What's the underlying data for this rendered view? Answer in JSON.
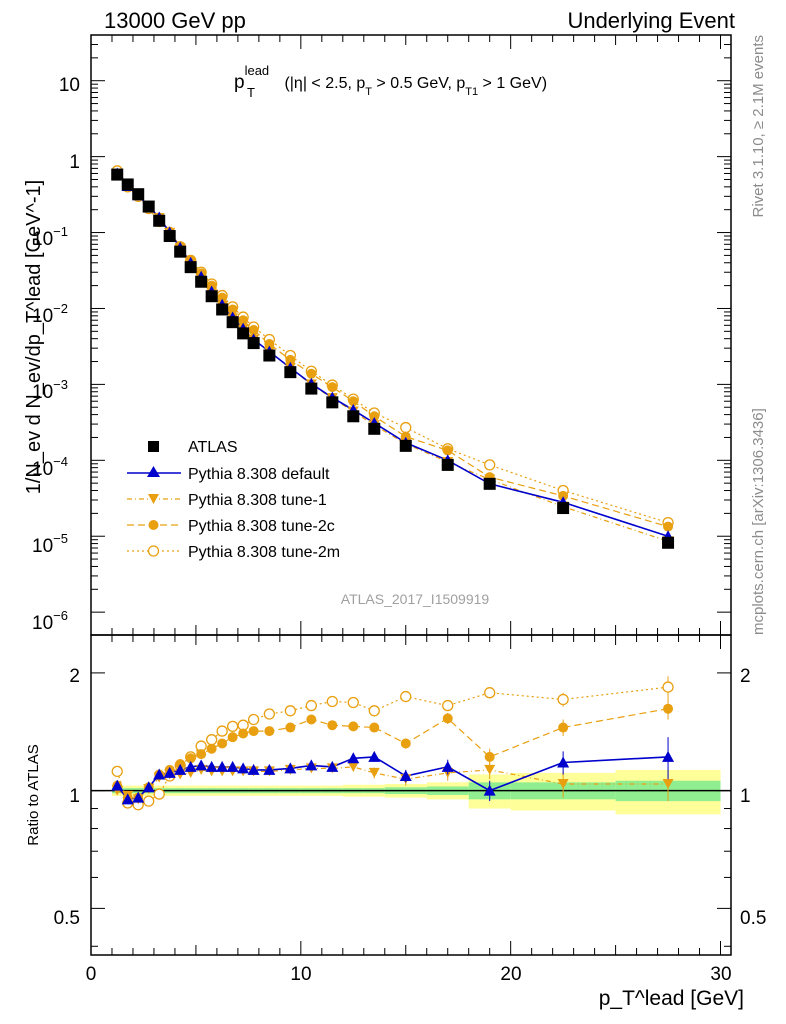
{
  "header": {
    "left": "13000 GeV pp",
    "right": "Underlying Event"
  },
  "side_labels": {
    "rivet": "Rivet 3.1.10, ≥ 2.1M events",
    "mcplots": "mcplots.cern.ch [arXiv:1306.3436]"
  },
  "analysis_id": "ATLAS_2017_I1509919",
  "colors": {
    "atlas": "#000000",
    "default": "#0000cc",
    "tunes": "#e8a010",
    "band_inner": "#90ee90",
    "band_outer": "#ffff99"
  },
  "chart_data": [
    {
      "type": "scatter",
      "panel": "main",
      "title_parts": {
        "p": "p",
        "sup": "lead",
        "sub": "T",
        "cut1": " (|η| < 2.5, p",
        "cut1_sub": "T",
        "cut2": " > 0.5 GeV, p",
        "cut2_sub": "T1",
        "cut3": " > 1 GeV)"
      },
      "ylabel_text": "1/N_ev d N_ev/dp_T^lead [GeV^-1]",
      "y_tick_labels": {
        "t1e1": "10",
        "t1e0": "1",
        "t1em1_base": "10",
        "t1em1_exp": "−1",
        "t1em2_base": "10",
        "t1em2_exp": "−2",
        "t1em3_base": "10",
        "t1em3_exp": "−3",
        "t1em4_base": "10",
        "t1em4_exp": "−4",
        "t1em5_base": "10",
        "t1em5_exp": "−5",
        "t1em6_base": "10",
        "t1em6_exp": "−6"
      },
      "yscale": "log",
      "xlim": [
        0,
        30.5
      ],
      "ylim": [
        5e-07,
        40
      ],
      "legend_position": "middle-left",
      "x": [
        1.25,
        1.75,
        2.25,
        2.75,
        3.25,
        3.75,
        4.25,
        4.75,
        5.25,
        5.75,
        6.25,
        6.75,
        7.25,
        7.75,
        8.5,
        9.5,
        10.5,
        11.5,
        12.5,
        13.5,
        15,
        17,
        19,
        22.5,
        27.5
      ],
      "series": [
        {
          "name": "ATLAS",
          "style": "atlas",
          "values": [
            0.58,
            0.43,
            0.32,
            0.22,
            0.143,
            0.09,
            0.056,
            0.035,
            0.0225,
            0.0145,
            0.0097,
            0.0066,
            0.0047,
            0.0035,
            0.0024,
            0.00145,
            0.00088,
            0.00058,
            0.00038,
            0.00026,
            0.000155,
            8.7e-05,
            4.9e-05,
            2.35e-05,
            8.2e-06
          ]
        },
        {
          "name": "Pythia 8.308 default",
          "style": "default",
          "values": [
            0.6,
            0.41,
            0.31,
            0.22,
            0.158,
            0.1,
            0.063,
            0.04,
            0.0262,
            0.0167,
            0.0112,
            0.0076,
            0.0054,
            0.0039,
            0.0027,
            0.00165,
            0.00102,
            0.00067,
            0.00046,
            0.00031,
            0.00017,
            0.0001,
            4.9e-05,
            2.8e-05,
            1e-05
          ]
        },
        {
          "name": "Pythia 8.308 tune-1",
          "style": "tune1",
          "values": [
            0.58,
            0.42,
            0.31,
            0.22,
            0.155,
            0.099,
            0.062,
            0.039,
            0.0255,
            0.0162,
            0.0108,
            0.0074,
            0.0053,
            0.0039,
            0.0027,
            0.00165,
            0.001,
            0.00066,
            0.00044,
            0.00029,
            0.000165,
            9.5e-05,
            5.6e-05,
            2.45e-05,
            8.6e-06
          ]
        },
        {
          "name": "Pythia 8.308 tune-2c",
          "style": "tune2c",
          "values": [
            0.6,
            0.41,
            0.31,
            0.225,
            0.158,
            0.103,
            0.066,
            0.043,
            0.029,
            0.02,
            0.0139,
            0.0097,
            0.007,
            0.0052,
            0.0034,
            0.0021,
            0.00138,
            0.00092,
            0.0006,
            0.00038,
            0.000205,
            0.000135,
            6e-05,
            3.4e-05,
            1.34e-05
          ]
        },
        {
          "name": "Pythia 8.308 tune-2m",
          "style": "tune2m",
          "values": [
            0.65,
            0.4,
            0.3,
            0.207,
            0.14,
            0.097,
            0.065,
            0.043,
            0.03,
            0.021,
            0.0148,
            0.0105,
            0.0077,
            0.0057,
            0.0039,
            0.0024,
            0.00149,
            0.00098,
            0.00064,
            0.00042,
            0.00027,
            0.000142,
            8.7e-05,
            4e-05,
            1.51e-05
          ]
        }
      ]
    },
    {
      "type": "scatter",
      "panel": "ratio",
      "xlabel_text": "p_T^lead [GeV]",
      "ylabel": "Ratio to ATLAS",
      "x_tick_labels": [
        "0",
        "10",
        "20",
        "30"
      ],
      "y_tick_labels": [
        "0.5",
        "1",
        "2"
      ],
      "yscale": "log",
      "xlim": [
        0,
        30.5
      ],
      "ylim": [
        0.38,
        2.5
      ],
      "x": [
        1.25,
        1.75,
        2.25,
        2.75,
        3.25,
        3.75,
        4.25,
        4.75,
        5.25,
        5.75,
        6.25,
        6.75,
        7.25,
        7.75,
        8.5,
        9.5,
        10.5,
        11.5,
        12.5,
        13.5,
        15,
        17,
        19,
        22.5,
        27.5
      ],
      "bands": {
        "x_edges": [
          1,
          1.5,
          2,
          2.5,
          3,
          3.5,
          4,
          4.5,
          5,
          5.5,
          6,
          6.5,
          7,
          7.5,
          8,
          9,
          10,
          11,
          12,
          13,
          14,
          16,
          18,
          20,
          25,
          30
        ],
        "inner_half_width": [
          0.015,
          0.015,
          0.015,
          0.015,
          0.015,
          0.015,
          0.015,
          0.015,
          0.015,
          0.015,
          0.015,
          0.015,
          0.015,
          0.015,
          0.015,
          0.015,
          0.015,
          0.015,
          0.015,
          0.015,
          0.02,
          0.025,
          0.05,
          0.05,
          0.06
        ],
        "outer_half_width": [
          0.03,
          0.03,
          0.03,
          0.03,
          0.03,
          0.03,
          0.03,
          0.03,
          0.03,
          0.03,
          0.03,
          0.03,
          0.03,
          0.03,
          0.03,
          0.03,
          0.03,
          0.03,
          0.035,
          0.035,
          0.04,
          0.05,
          0.1,
          0.11,
          0.13
        ]
      },
      "series": [
        {
          "name": "Pythia 8.308 default",
          "style": "default",
          "values": [
            1.03,
            0.95,
            0.96,
            1.02,
            1.1,
            1.11,
            1.13,
            1.15,
            1.16,
            1.15,
            1.15,
            1.15,
            1.14,
            1.13,
            1.13,
            1.14,
            1.16,
            1.15,
            1.21,
            1.22,
            1.09,
            1.15,
            1.0,
            1.18,
            1.22
          ],
          "errors": [
            0.01,
            0.01,
            0.01,
            0.01,
            0.01,
            0.01,
            0.01,
            0.01,
            0.01,
            0.01,
            0.01,
            0.01,
            0.01,
            0.01,
            0.01,
            0.015,
            0.02,
            0.025,
            0.03,
            0.035,
            0.04,
            0.05,
            0.06,
            0.08,
            0.15
          ]
        },
        {
          "name": "Pythia 8.308 tune-1",
          "style": "tune1",
          "values": [
            1.0,
            0.97,
            0.95,
            1.01,
            1.08,
            1.1,
            1.1,
            1.11,
            1.13,
            1.12,
            1.12,
            1.12,
            1.12,
            1.12,
            1.12,
            1.13,
            1.14,
            1.14,
            1.15,
            1.11,
            1.07,
            1.11,
            1.13,
            1.04,
            1.04
          ],
          "errors": [
            0.01,
            0.01,
            0.01,
            0.01,
            0.01,
            0.01,
            0.01,
            0.01,
            0.01,
            0.01,
            0.01,
            0.01,
            0.01,
            0.01,
            0.015,
            0.015,
            0.02,
            0.025,
            0.03,
            0.035,
            0.04,
            0.05,
            0.06,
            0.08,
            0.1
          ]
        },
        {
          "name": "Pythia 8.308 tune-2c",
          "style": "tune2c",
          "values": [
            1.03,
            0.96,
            0.96,
            1.02,
            1.1,
            1.13,
            1.17,
            1.21,
            1.24,
            1.28,
            1.32,
            1.37,
            1.4,
            1.42,
            1.42,
            1.45,
            1.52,
            1.47,
            1.46,
            1.45,
            1.32,
            1.53,
            1.22,
            1.45,
            1.62
          ],
          "errors": [
            0.01,
            0.01,
            0.01,
            0.01,
            0.01,
            0.01,
            0.01,
            0.01,
            0.01,
            0.01,
            0.01,
            0.01,
            0.015,
            0.015,
            0.015,
            0.02,
            0.02,
            0.025,
            0.03,
            0.035,
            0.04,
            0.05,
            0.06,
            0.07,
            0.1
          ]
        },
        {
          "name": "Pythia 8.308 tune-2m",
          "style": "tune2m",
          "values": [
            1.12,
            0.93,
            0.92,
            0.94,
            0.98,
            1.09,
            1.16,
            1.22,
            1.3,
            1.35,
            1.42,
            1.46,
            1.47,
            1.52,
            1.57,
            1.6,
            1.65,
            1.69,
            1.68,
            1.6,
            1.74,
            1.65,
            1.78,
            1.71,
            1.84
          ],
          "errors": [
            0.01,
            0.01,
            0.01,
            0.01,
            0.01,
            0.01,
            0.01,
            0.01,
            0.01,
            0.01,
            0.01,
            0.01,
            0.015,
            0.015,
            0.015,
            0.02,
            0.02,
            0.025,
            0.03,
            0.035,
            0.04,
            0.05,
            0.06,
            0.07,
            0.12
          ]
        }
      ]
    }
  ]
}
